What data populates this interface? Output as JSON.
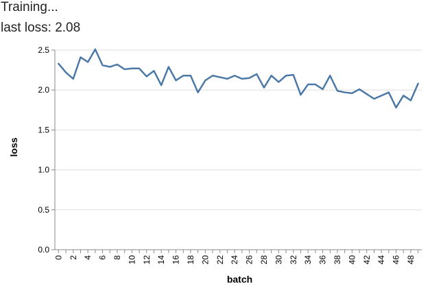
{
  "status": {
    "title": "Training...",
    "last_loss_label": "last loss:",
    "last_loss_value": "2.08"
  },
  "chart_data": {
    "type": "line",
    "xlabel": "batch",
    "ylabel": "loss",
    "x_ticks": [
      "0",
      "2",
      "4",
      "6",
      "8",
      "10",
      "12",
      "14",
      "16",
      "18",
      "20",
      "22",
      "24",
      "26",
      "28",
      "30",
      "32",
      "34",
      "36",
      "38",
      "40",
      "42",
      "44",
      "46",
      "48"
    ],
    "y_ticks": [
      "0.0",
      "0.5",
      "1.0",
      "1.5",
      "2.0",
      "2.5"
    ],
    "xlim": [
      0,
      49
    ],
    "ylim": [
      0,
      2.5
    ],
    "grid": true,
    "line_color": "#4c78a8",
    "x": [
      0,
      1,
      2,
      3,
      4,
      5,
      6,
      7,
      8,
      9,
      10,
      11,
      12,
      13,
      14,
      15,
      16,
      17,
      18,
      19,
      20,
      21,
      22,
      23,
      24,
      25,
      26,
      27,
      28,
      29,
      30,
      31,
      32,
      33,
      34,
      35,
      36,
      37,
      38,
      39,
      40,
      41,
      42,
      43,
      44,
      45,
      46,
      47,
      48,
      49
    ],
    "values": [
      2.33,
      2.22,
      2.14,
      2.41,
      2.35,
      2.51,
      2.31,
      2.29,
      2.32,
      2.26,
      2.27,
      2.27,
      2.17,
      2.24,
      2.06,
      2.29,
      2.12,
      2.18,
      2.18,
      1.97,
      2.12,
      2.18,
      2.16,
      2.14,
      2.18,
      2.14,
      2.15,
      2.2,
      2.03,
      2.18,
      2.1,
      2.18,
      2.19,
      1.94,
      2.07,
      2.07,
      2.01,
      2.18,
      1.99,
      1.97,
      1.96,
      2.01,
      1.95,
      1.89,
      1.93,
      1.97,
      1.78,
      1.93,
      1.87,
      2.08
    ]
  }
}
